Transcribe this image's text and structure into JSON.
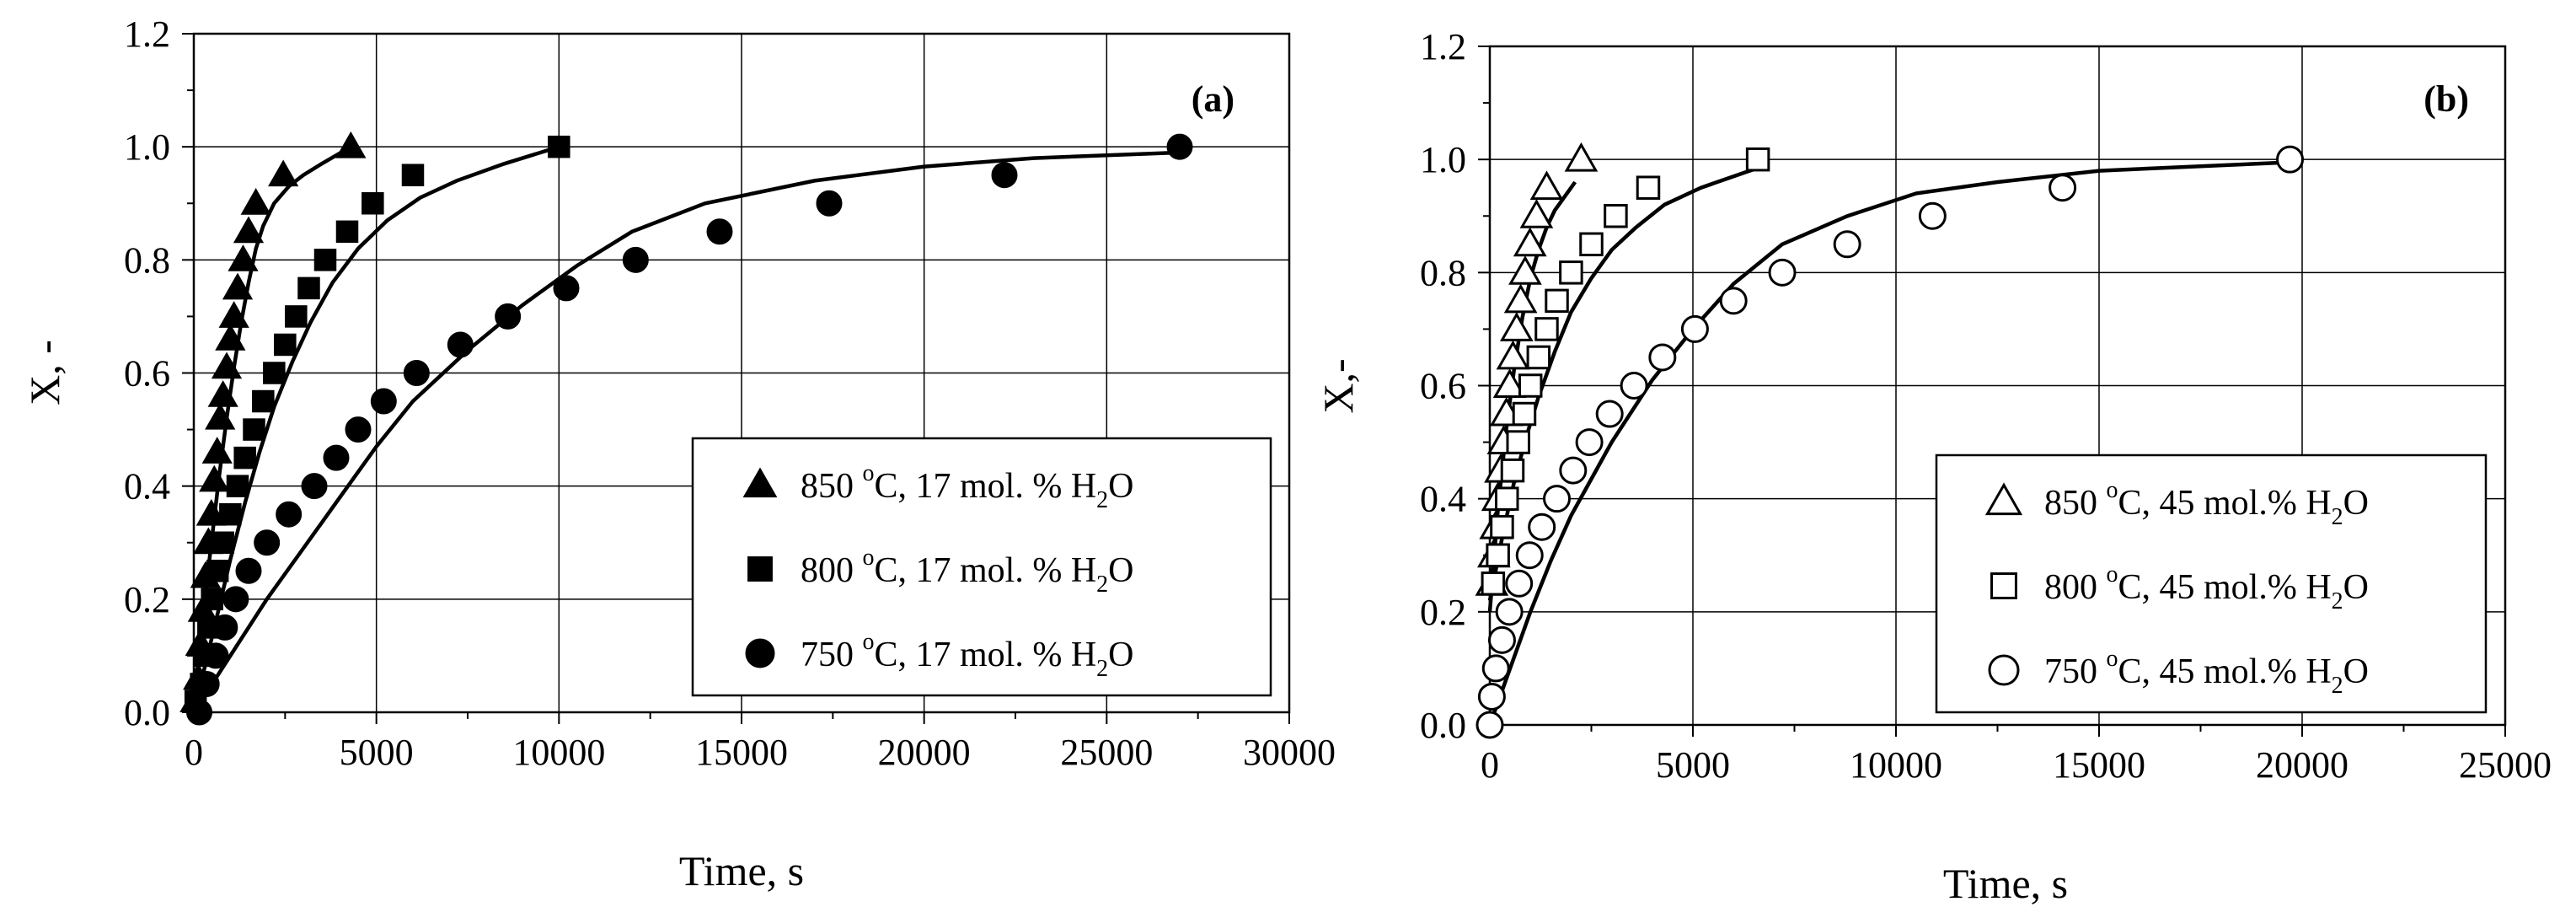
{
  "chart_data": [
    {
      "type": "scatter",
      "panel_label": "(a)",
      "xlabel": "Time, s",
      "ylabel": "X, -",
      "xlim": [
        0,
        30000
      ],
      "ylim": [
        0,
        1.2
      ],
      "xticks": [
        0,
        5000,
        10000,
        15000,
        20000,
        25000,
        30000
      ],
      "yticks": [
        0.0,
        0.2,
        0.4,
        0.6,
        0.8,
        1.0,
        1.2
      ],
      "xtick_labels": [
        "0",
        "5000",
        "10000",
        "15000",
        "20000",
        "25000",
        "30000"
      ],
      "ytick_labels": [
        "0.0",
        "0.2",
        "0.4",
        "0.6",
        "0.8",
        "1.0",
        "1.2"
      ],
      "grid": true,
      "legend_position": "bottom-right",
      "series": [
        {
          "name": "850 oC, 17 mol. % H2O",
          "label_main": "850 ",
          "label_sup": "o",
          "label_mid": "C, 17 mol. % H",
          "label_sub": "2",
          "label_end": "O",
          "marker": "filled-triangle",
          "points": [
            [
              30,
              0.02
            ],
            [
              120,
              0.06
            ],
            [
              180,
              0.12
            ],
            [
              250,
              0.18
            ],
            [
              320,
              0.24
            ],
            [
              400,
              0.3
            ],
            [
              480,
              0.35
            ],
            [
              560,
              0.41
            ],
            [
              640,
              0.46
            ],
            [
              720,
              0.52
            ],
            [
              800,
              0.56
            ],
            [
              900,
              0.61
            ],
            [
              1000,
              0.66
            ],
            [
              1100,
              0.7
            ],
            [
              1200,
              0.75
            ],
            [
              1350,
              0.8
            ],
            [
              1500,
              0.85
            ],
            [
              1700,
              0.9
            ],
            [
              2450,
              0.95
            ],
            [
              4300,
              1.0
            ]
          ],
          "fit": [
            [
              0,
              0
            ],
            [
              150,
              0.1
            ],
            [
              300,
              0.2
            ],
            [
              500,
              0.31
            ],
            [
              700,
              0.42
            ],
            [
              900,
              0.52
            ],
            [
              1100,
              0.61
            ],
            [
              1300,
              0.69
            ],
            [
              1500,
              0.76
            ],
            [
              1700,
              0.82
            ],
            [
              1900,
              0.86
            ],
            [
              2200,
              0.9
            ],
            [
              2600,
              0.93
            ],
            [
              3000,
              0.95
            ],
            [
              3500,
              0.97
            ],
            [
              4300,
              1.0
            ]
          ]
        },
        {
          "name": "800 oC, 17 mol. % H2O",
          "label_main": "800 ",
          "label_sup": "o",
          "label_mid": "C, 17 mol. % H",
          "label_sub": "2",
          "label_end": "O",
          "marker": "filled-square",
          "points": [
            [
              50,
              0.02
            ],
            [
              200,
              0.05
            ],
            [
              300,
              0.1
            ],
            [
              400,
              0.15
            ],
            [
              500,
              0.2
            ],
            [
              650,
              0.25
            ],
            [
              800,
              0.3
            ],
            [
              1000,
              0.35
            ],
            [
              1200,
              0.4
            ],
            [
              1400,
              0.45
            ],
            [
              1650,
              0.5
            ],
            [
              1900,
              0.55
            ],
            [
              2200,
              0.6
            ],
            [
              2500,
              0.65
            ],
            [
              2800,
              0.7
            ],
            [
              3150,
              0.75
            ],
            [
              3600,
              0.8
            ],
            [
              4200,
              0.85
            ],
            [
              4900,
              0.9
            ],
            [
              6000,
              0.95
            ],
            [
              10000,
              1.0
            ]
          ],
          "fit": [
            [
              0,
              0
            ],
            [
              300,
              0.08
            ],
            [
              600,
              0.16
            ],
            [
              1000,
              0.27
            ],
            [
              1400,
              0.37
            ],
            [
              1800,
              0.46
            ],
            [
              2200,
              0.54
            ],
            [
              2700,
              0.62
            ],
            [
              3200,
              0.69
            ],
            [
              3800,
              0.76
            ],
            [
              4500,
              0.82
            ],
            [
              5300,
              0.87
            ],
            [
              6200,
              0.91
            ],
            [
              7200,
              0.94
            ],
            [
              8500,
              0.97
            ],
            [
              10000,
              1.0
            ]
          ]
        },
        {
          "name": "750 oC, 17 mol. % H2O",
          "label_main": "750 ",
          "label_sup": "o",
          "label_mid": "C, 17 mol. % H",
          "label_sub": "2",
          "label_end": "O",
          "marker": "filled-circle",
          "points": [
            [
              150,
              0.0
            ],
            [
              350,
              0.05
            ],
            [
              600,
              0.1
            ],
            [
              850,
              0.15
            ],
            [
              1150,
              0.2
            ],
            [
              1500,
              0.25
            ],
            [
              2000,
              0.3
            ],
            [
              2600,
              0.35
            ],
            [
              3300,
              0.4
            ],
            [
              3900,
              0.45
            ],
            [
              4500,
              0.5
            ],
            [
              5200,
              0.55
            ],
            [
              6100,
              0.6
            ],
            [
              7300,
              0.65
            ],
            [
              8600,
              0.7
            ],
            [
              10200,
              0.75
            ],
            [
              12100,
              0.8
            ],
            [
              14400,
              0.85
            ],
            [
              17400,
              0.9
            ],
            [
              22200,
              0.95
            ],
            [
              27000,
              1.0
            ]
          ],
          "fit": [
            [
              0,
              0
            ],
            [
              600,
              0.06
            ],
            [
              1200,
              0.12
            ],
            [
              2000,
              0.2
            ],
            [
              3000,
              0.29
            ],
            [
              4000,
              0.38
            ],
            [
              5000,
              0.47
            ],
            [
              6000,
              0.55
            ],
            [
              7500,
              0.64
            ],
            [
              9000,
              0.72
            ],
            [
              10500,
              0.79
            ],
            [
              12000,
              0.85
            ],
            [
              14000,
              0.9
            ],
            [
              17000,
              0.94
            ],
            [
              20000,
              0.965
            ],
            [
              23000,
              0.98
            ],
            [
              27000,
              0.99
            ]
          ]
        }
      ]
    },
    {
      "type": "scatter",
      "panel_label": "(b)",
      "xlabel": "Time, s",
      "ylabel": "X,-",
      "xlim": [
        0,
        25000
      ],
      "ylim": [
        0,
        1.2
      ],
      "xticks": [
        0,
        5000,
        10000,
        15000,
        20000,
        25000
      ],
      "yticks": [
        0.0,
        0.2,
        0.4,
        0.6,
        0.8,
        1.0,
        1.2
      ],
      "xtick_labels": [
        "0",
        "5000",
        "10000",
        "15000",
        "20000",
        "25000"
      ],
      "ytick_labels": [
        "0.0",
        "0.2",
        "0.4",
        "0.6",
        "0.8",
        "1.0",
        "1.2"
      ],
      "grid": true,
      "legend_position": "bottom-right",
      "series": [
        {
          "name": "850 oC, 45 mol.% H2O",
          "label_main": "850 ",
          "label_sup": "o",
          "label_mid": "C, 45 mol.% H",
          "label_sub": "2",
          "label_end": "O",
          "marker": "open-triangle",
          "points": [
            [
              50,
              0.25
            ],
            [
              100,
              0.3
            ],
            [
              150,
              0.35
            ],
            [
              200,
              0.4
            ],
            [
              270,
              0.45
            ],
            [
              340,
              0.5
            ],
            [
              410,
              0.55
            ],
            [
              490,
              0.6
            ],
            [
              570,
              0.65
            ],
            [
              660,
              0.7
            ],
            [
              760,
              0.75
            ],
            [
              870,
              0.8
            ],
            [
              990,
              0.85
            ],
            [
              1150,
              0.9
            ],
            [
              1400,
              0.95
            ],
            [
              2250,
              1.0
            ]
          ],
          "fit": [
            [
              0,
              0.2
            ],
            [
              200,
              0.38
            ],
            [
              400,
              0.52
            ],
            [
              600,
              0.63
            ],
            [
              800,
              0.72
            ],
            [
              1000,
              0.79
            ],
            [
              1200,
              0.84
            ],
            [
              1400,
              0.88
            ],
            [
              1600,
              0.91
            ],
            [
              1800,
              0.93
            ],
            [
              2100,
              0.96
            ]
          ]
        },
        {
          "name": "800 oC, 45 mol.% H2O",
          "label_main": "800 ",
          "label_sup": "o",
          "label_mid": "C, 45 mol.% H",
          "label_sub": "2",
          "label_end": "O",
          "marker": "open-square",
          "points": [
            [
              80,
              0.25
            ],
            [
              200,
              0.3
            ],
            [
              300,
              0.35
            ],
            [
              420,
              0.4
            ],
            [
              560,
              0.45
            ],
            [
              700,
              0.5
            ],
            [
              850,
              0.55
            ],
            [
              1000,
              0.6
            ],
            [
              1200,
              0.65
            ],
            [
              1400,
              0.7
            ],
            [
              1650,
              0.75
            ],
            [
              2000,
              0.8
            ],
            [
              2500,
              0.85
            ],
            [
              3100,
              0.9
            ],
            [
              3900,
              0.95
            ],
            [
              6600,
              1.0
            ]
          ],
          "fit": [
            [
              0,
              0.22
            ],
            [
              300,
              0.33
            ],
            [
              600,
              0.43
            ],
            [
              900,
              0.51
            ],
            [
              1200,
              0.58
            ],
            [
              1600,
              0.66
            ],
            [
              2000,
              0.73
            ],
            [
              2500,
              0.79
            ],
            [
              3000,
              0.84
            ],
            [
              3600,
              0.88
            ],
            [
              4300,
              0.92
            ],
            [
              5200,
              0.95
            ],
            [
              6600,
              0.985
            ]
          ]
        },
        {
          "name": "750 oC, 45 mol.% H2O",
          "label_main": "750 ",
          "label_sup": "o",
          "label_mid": "C, 45 mol.% H",
          "label_sub": "2",
          "label_end": "O",
          "marker": "open-circle",
          "points": [
            [
              0,
              0.0
            ],
            [
              50,
              0.05
            ],
            [
              150,
              0.1
            ],
            [
              300,
              0.15
            ],
            [
              480,
              0.2
            ],
            [
              720,
              0.25
            ],
            [
              980,
              0.3
            ],
            [
              1280,
              0.35
            ],
            [
              1650,
              0.4
            ],
            [
              2050,
              0.45
            ],
            [
              2450,
              0.5
            ],
            [
              2950,
              0.55
            ],
            [
              3550,
              0.6
            ],
            [
              4250,
              0.65
            ],
            [
              5050,
              0.7
            ],
            [
              6000,
              0.75
            ],
            [
              7200,
              0.8
            ],
            [
              8800,
              0.85
            ],
            [
              10900,
              0.9
            ],
            [
              14100,
              0.95
            ],
            [
              19700,
              1.0
            ]
          ],
          "fit": [
            [
              0,
              0
            ],
            [
              500,
              0.1
            ],
            [
              1000,
              0.2
            ],
            [
              1500,
              0.29
            ],
            [
              2000,
              0.37
            ],
            [
              3000,
              0.5
            ],
            [
              4000,
              0.61
            ],
            [
              5000,
              0.7
            ],
            [
              6000,
              0.78
            ],
            [
              7200,
              0.85
            ],
            [
              8800,
              0.9
            ],
            [
              10500,
              0.94
            ],
            [
              12500,
              0.96
            ],
            [
              15000,
              0.98
            ],
            [
              19700,
              0.995
            ]
          ]
        }
      ]
    }
  ]
}
